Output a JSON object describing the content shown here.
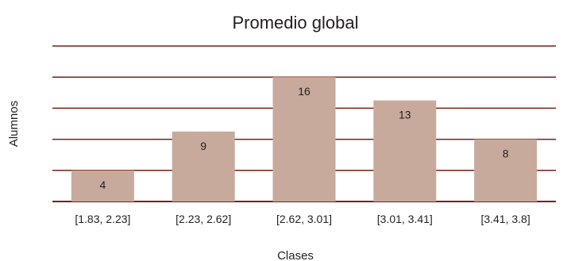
{
  "chart_data": {
    "type": "bar",
    "title": "Promedio global",
    "xlabel": "Clases",
    "ylabel": "Alumnos",
    "categories": [
      "[1.83, 2.23]",
      "[2.23, 2.62]",
      "[2.62, 3.01]",
      "[3.01, 3.41]",
      "[3.41, 3.8]"
    ],
    "values": [
      4,
      9,
      16,
      13,
      8
    ],
    "ylim": [
      0,
      20
    ],
    "grid": true,
    "legend": "none",
    "colors": {
      "bar": "#c8aa9c",
      "grid": "#7a1f12",
      "text": "#231f20"
    }
  }
}
